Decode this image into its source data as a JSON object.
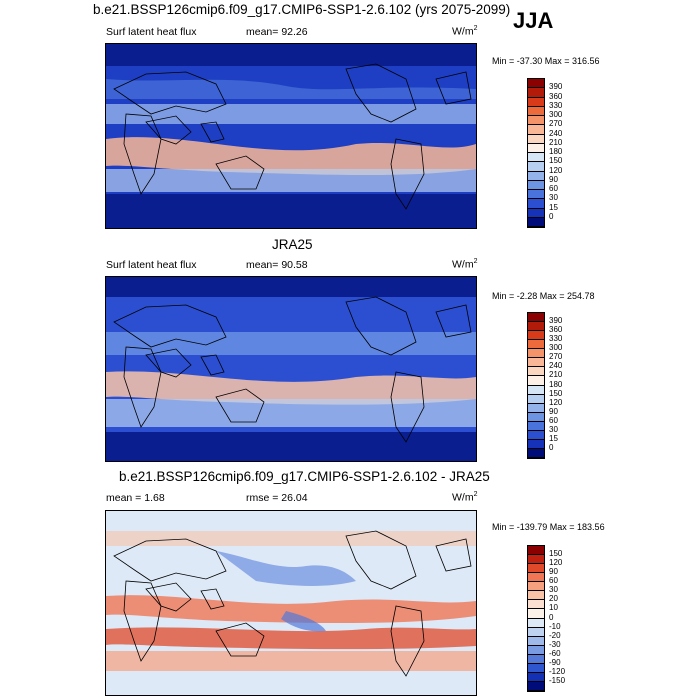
{
  "season": "JJA",
  "panels": [
    {
      "title": "b.e21.BSSP126cmip6.f09_g17.CMIP6-SSP1-2.6.102 (yrs 2075-2099)",
      "left_label": "Surf latent heat flux",
      "stat_label": "mean=  92.26",
      "units": "W/m",
      "units_sup": "2",
      "minmax": "Min = -37.30 Max = 316.56",
      "colorbar": {
        "labels": [
          "390",
          "360",
          "330",
          "300",
          "270",
          "240",
          "210",
          "180",
          "150",
          "120",
          "90",
          "60",
          "30",
          "15",
          "0"
        ],
        "colors": [
          "#8b0000",
          "#b21a0a",
          "#d83a1a",
          "#ec6a3c",
          "#f4936a",
          "#f9b797",
          "#fbd6c0",
          "#fdf0e6",
          "#d7e6f7",
          "#b7cff0",
          "#93b3ea",
          "#6d94e3",
          "#4a73db",
          "#2b4fd0",
          "#1532b8",
          "#000c7a"
        ]
      }
    },
    {
      "title": "JRA25",
      "left_label": "Surf latent heat flux",
      "stat_label": "mean=  90.58",
      "units": "W/m",
      "units_sup": "2",
      "minmax": "Min =  -2.28 Max = 254.78",
      "colorbar": {
        "labels": [
          "390",
          "360",
          "330",
          "300",
          "270",
          "240",
          "210",
          "180",
          "150",
          "120",
          "90",
          "60",
          "30",
          "15",
          "0"
        ],
        "colors": [
          "#8b0000",
          "#b21a0a",
          "#d83a1a",
          "#ec6a3c",
          "#f4936a",
          "#f9b797",
          "#fbd6c0",
          "#fdf0e6",
          "#d7e6f7",
          "#b7cff0",
          "#93b3ea",
          "#6d94e3",
          "#4a73db",
          "#2b4fd0",
          "#1532b8",
          "#000c7a"
        ]
      }
    },
    {
      "title": "b.e21.BSSP126cmip6.f09_g17.CMIP6-SSP1-2.6.102 - JRA25",
      "left_label": "mean =   1.68",
      "stat_label": "rmse =  26.04",
      "units": "W/m",
      "units_sup": "2",
      "minmax": "Min = -139.79 Max = 183.56",
      "colorbar": {
        "labels": [
          "150",
          "120",
          "90",
          "60",
          "30",
          "20",
          "10",
          "0",
          "-10",
          "-20",
          "-30",
          "-60",
          "-90",
          "-120",
          "-150"
        ],
        "colors": [
          "#8b0000",
          "#c0200f",
          "#e04a2a",
          "#f07655",
          "#f6a080",
          "#f9c3a8",
          "#fbdfd0",
          "#fdf2ea",
          "#dde9f7",
          "#bfd3f0",
          "#9fbaea",
          "#7a9ae2",
          "#5479d9",
          "#2f55cf",
          "#1431b5",
          "#000c7a"
        ]
      }
    }
  ]
}
